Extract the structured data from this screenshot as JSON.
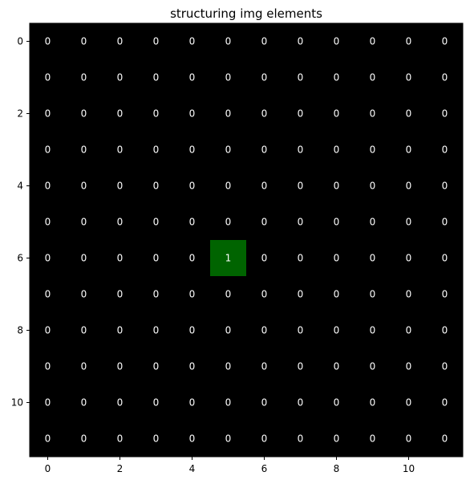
{
  "chart_data": {
    "type": "heatmap",
    "title": "structuring img elements",
    "xlabel": "",
    "ylabel": "",
    "rows": 12,
    "cols": 12,
    "values": [
      [
        0,
        0,
        0,
        0,
        0,
        0,
        0,
        0,
        0,
        0,
        0,
        0
      ],
      [
        0,
        0,
        0,
        0,
        0,
        0,
        0,
        0,
        0,
        0,
        0,
        0
      ],
      [
        0,
        0,
        0,
        0,
        0,
        0,
        0,
        0,
        0,
        0,
        0,
        0
      ],
      [
        0,
        0,
        0,
        0,
        0,
        0,
        0,
        0,
        0,
        0,
        0,
        0
      ],
      [
        0,
        0,
        0,
        0,
        0,
        0,
        0,
        0,
        0,
        0,
        0,
        0
      ],
      [
        0,
        0,
        0,
        0,
        0,
        0,
        0,
        0,
        0,
        0,
        0,
        0
      ],
      [
        0,
        0,
        0,
        0,
        0,
        1,
        0,
        0,
        0,
        0,
        0,
        0
      ],
      [
        0,
        0,
        0,
        0,
        0,
        0,
        0,
        0,
        0,
        0,
        0,
        0
      ],
      [
        0,
        0,
        0,
        0,
        0,
        0,
        0,
        0,
        0,
        0,
        0,
        0
      ],
      [
        0,
        0,
        0,
        0,
        0,
        0,
        0,
        0,
        0,
        0,
        0,
        0
      ],
      [
        0,
        0,
        0,
        0,
        0,
        0,
        0,
        0,
        0,
        0,
        0,
        0
      ],
      [
        0,
        0,
        0,
        0,
        0,
        0,
        0,
        0,
        0,
        0,
        0,
        0
      ]
    ],
    "x_ticks": [
      0,
      2,
      4,
      6,
      8,
      10
    ],
    "y_ticks": [
      0,
      2,
      4,
      6,
      8,
      10
    ],
    "xlim": [
      -0.5,
      11.5
    ],
    "ylim": [
      11.5,
      -0.5
    ],
    "colors": {
      "zero": "#000000",
      "one": "#006400",
      "cell_text": "#ffffff"
    },
    "grid": false,
    "legend": "none"
  }
}
